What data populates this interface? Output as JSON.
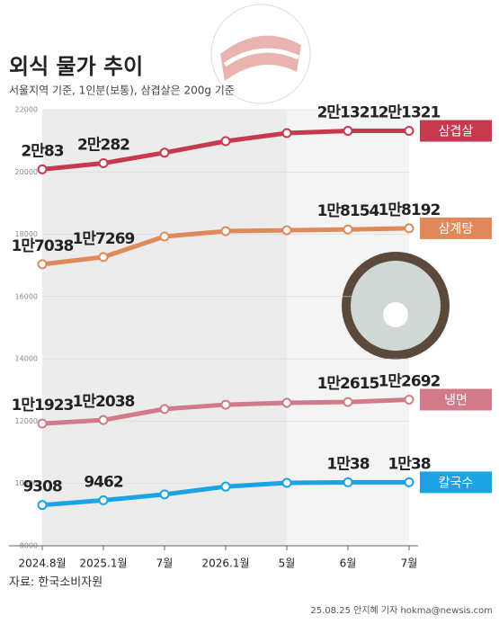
{
  "chart_data": {
    "type": "line",
    "title": "외식 물가 추이",
    "subtitle": "서울지역 기준, 1인분(보통), 삼겹살은 200g 기준",
    "source": "자료: 한국소비자원",
    "credit": "25.08.25 안지혜 기자 hokma@newsis.com",
    "categories": [
      "2024.8월",
      "2025.1월",
      "7월",
      "2026.1월",
      "5월",
      "6월",
      "7월"
    ],
    "ylim": [
      8000,
      22000
    ],
    "yticks": [
      8000,
      10000,
      12000,
      14000,
      16000,
      18000,
      20000,
      22000
    ],
    "series": [
      {
        "name": "삼겹살",
        "color": "#c8384f",
        "values": [
          20083,
          20282,
          20620,
          20990,
          21250,
          21321,
          21321
        ],
        "value_labels": [
          "2만83",
          "2만282",
          null,
          null,
          null,
          "2만1321",
          "2만1321"
        ]
      },
      {
        "name": "삼계탕",
        "color": "#e08a5c",
        "values": [
          17038,
          17269,
          17930,
          18100,
          18130,
          18154,
          18192
        ],
        "value_labels": [
          "1만7038",
          "1만7269",
          null,
          null,
          null,
          "1만8154",
          "1만8192"
        ]
      },
      {
        "name": "냉면",
        "color": "#d27a8a",
        "values": [
          11923,
          12038,
          12390,
          12530,
          12590,
          12615,
          12692
        ],
        "value_labels": [
          "1만1923",
          "1만2038",
          null,
          null,
          null,
          "1만2615",
          "1만2692"
        ]
      },
      {
        "name": "칼국수",
        "color": "#1ba3e3",
        "values": [
          9308,
          9462,
          9650,
          9900,
          10020,
          10038,
          10038
        ],
        "value_labels": [
          "9308",
          "9462",
          null,
          null,
          null,
          "1만38",
          "1만38"
        ]
      }
    ]
  }
}
